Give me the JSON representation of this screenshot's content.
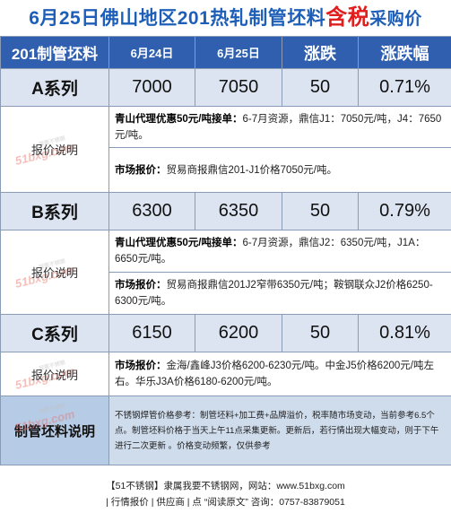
{
  "title": {
    "pre": "6月25日佛山地区201热轧制管坯料",
    "highlight": "含税",
    "post": "采购价"
  },
  "header": {
    "col0": "201制管坯料",
    "col1": "6月24日",
    "col2": "6月25日",
    "col3": "涨跌",
    "col4": "涨跌幅"
  },
  "label_quote": "报价说明",
  "watermark": {
    "brand": "51bxg.com",
    "sub": "我要不锈钢"
  },
  "series": [
    {
      "name": "A系列",
      "prev": "7000",
      "curr": "7050",
      "change": "50",
      "pct": "0.71%",
      "notes": [
        {
          "bold": "青山代理优惠50元/吨接单：",
          "text": "6-7月资源，鼎信J1：7050元/吨，J4：7650元/吨。"
        },
        {
          "bold": "市场报价：",
          "text": "贸易商报鼎信201-J1价格7050元/吨。"
        }
      ]
    },
    {
      "name": "B系列",
      "prev": "6300",
      "curr": "6350",
      "change": "50",
      "pct": "0.79%",
      "notes": [
        {
          "bold": "青山代理优惠50元/吨接单：",
          "text": "6-7月资源，鼎信J2：6350元/吨，J1A：6650元/吨。"
        },
        {
          "bold": "市场报价：",
          "text": "贸易商报鼎信201J2窄带6350元/吨；鞍钢联众J2价格6250-6300元/吨。"
        }
      ]
    },
    {
      "name": "C系列",
      "prev": "6150",
      "curr": "6200",
      "change": "50",
      "pct": "0.81%",
      "notes": [
        {
          "bold": "市场报价：",
          "text": "金海/鑫峰J3价格6200-6230元/吨。中金J5价格6200元/吨左右。华乐J3A价格6180-6200元/吨。"
        }
      ]
    }
  ],
  "description": {
    "label": "制管坯料说明",
    "text": "不锈钢焊管价格参考：制管坯料+加工费+品牌溢价，税率随市场变动，当前参考6.5个点。制管坯料价格于当天上午11点采集更新。更新后，若行情出现大幅变动，则于下午进行二次更新 。价格变动频繁，仅供参考"
  },
  "footer": {
    "line1": "【51不锈钢】隶属我要不锈钢网，网站：www.51bxg.com",
    "line2": "| 行情报价 | 供应商 | 点 “阅读原文” 咨询：0757-83879051"
  }
}
